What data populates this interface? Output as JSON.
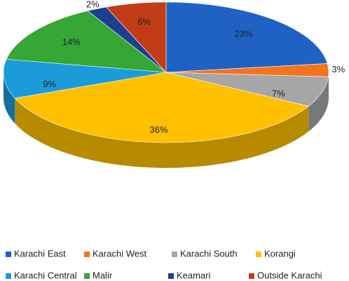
{
  "chart_data": {
    "type": "pie",
    "categories": [
      "Karachi East",
      "Karachi West",
      "Karachi South",
      "Korangi",
      "Karachi Central",
      "Malir",
      "Keamari",
      "Outside Karachi"
    ],
    "values": [
      23,
      3,
      7,
      36,
      9,
      14,
      2,
      6
    ],
    "value_labels": [
      "23%",
      "3%",
      "7%",
      "36%",
      "9%",
      "14%",
      "2%",
      "6%"
    ],
    "colors": [
      "#1f62c4",
      "#f4731f",
      "#a6a6a6",
      "#ffc000",
      "#1b9bd8",
      "#36a636",
      "#1c3f8f",
      "#c23c18"
    ],
    "legend": "bottom"
  }
}
